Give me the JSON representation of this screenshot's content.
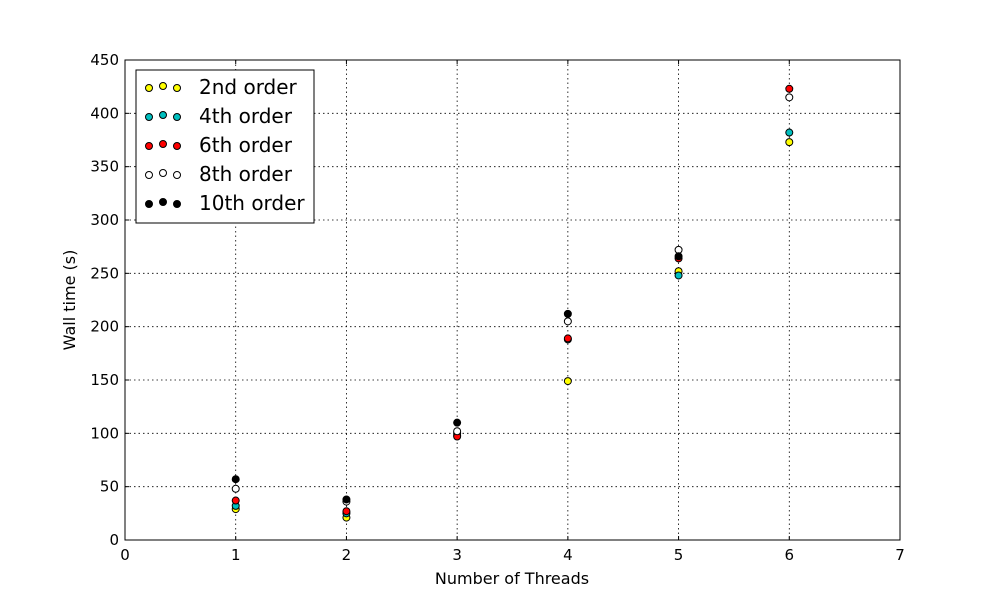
{
  "chart_data": {
    "type": "scatter",
    "title": "",
    "xlabel": "Number of Threads",
    "ylabel": "Wall time (s)",
    "xlim": [
      0,
      7
    ],
    "ylim": [
      0,
      450
    ],
    "xticks": [
      0,
      1,
      2,
      3,
      4,
      5,
      6,
      7
    ],
    "yticks": [
      0,
      50,
      100,
      150,
      200,
      250,
      300,
      350,
      400,
      450
    ],
    "grid": true,
    "legend": "top-left",
    "series": [
      {
        "name": "2nd order",
        "color": "#ffff00",
        "x": [
          1,
          2,
          3,
          4,
          5,
          6
        ],
        "y": [
          29,
          21,
          98,
          149,
          252,
          373
        ]
      },
      {
        "name": "4th order",
        "color": "#00bfbf",
        "x": [
          1,
          2,
          3,
          4,
          5,
          6
        ],
        "y": [
          32,
          25,
          100,
          188,
          248,
          382
        ]
      },
      {
        "name": "6th order",
        "color": "#ff0000",
        "x": [
          1,
          2,
          3,
          4,
          5,
          6
        ],
        "y": [
          37,
          27,
          97,
          189,
          264,
          423
        ]
      },
      {
        "name": "8th order",
        "color": "#ffffff",
        "x": [
          1,
          2,
          3,
          4,
          5,
          6
        ],
        "y": [
          48,
          36,
          102,
          205,
          272,
          415
        ]
      },
      {
        "name": "10th order",
        "color": "#000000",
        "x": [
          1,
          2,
          3,
          4,
          5,
          6
        ],
        "y": [
          57,
          38,
          110,
          212,
          266,
          null
        ]
      }
    ]
  }
}
